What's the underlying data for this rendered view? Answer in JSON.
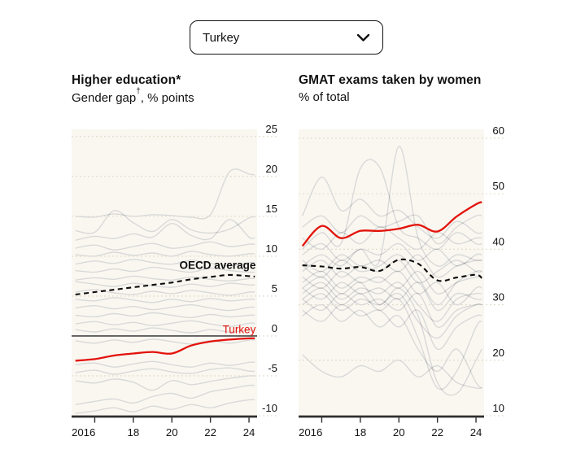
{
  "dropdown": {
    "value": "Turkey"
  },
  "colors": {
    "accent_red": "#e3120b",
    "reference_black": "#0d0d0d",
    "background_gray": "#d9d9d9",
    "plot_background": "#f9f7f0",
    "gridline": "#ddd7c3",
    "axis": "#2f2f2f",
    "zero_line": "#474747",
    "text": "#121212"
  },
  "chart_data": [
    {
      "type": "line",
      "title": "Higher education*",
      "subtitle": "Gender gap†, % points",
      "subtitle_parts": [
        {
          "t": "Gender gap"
        },
        {
          "t": "†",
          "sup": true
        },
        {
          "t": ", % points"
        }
      ],
      "x": [
        2015,
        2016,
        2017,
        2018,
        2019,
        2020,
        2021,
        2022,
        2023,
        2024,
        2024.3
      ],
      "xlim": [
        2014.8,
        2024.42
      ],
      "ylim": [
        -10,
        25.9
      ],
      "xticks": [
        {
          "v": 2016,
          "label": "2016",
          "align": "start"
        },
        {
          "v": 2018,
          "label": "18"
        },
        {
          "v": 2020,
          "label": "20"
        },
        {
          "v": 2022,
          "label": "22"
        },
        {
          "v": 2024,
          "label": "24"
        }
      ],
      "yticks": [
        25,
        20,
        15,
        10,
        5,
        0,
        -5,
        -10
      ],
      "zero_line": true,
      "grid": "dotted",
      "legend": "none",
      "series": [
        {
          "name": "OECD average",
          "role": "reference",
          "color": "#0d0d0d",
          "dash": true,
          "values": [
            5.2,
            5.5,
            5.8,
            6.1,
            6.4,
            6.7,
            7.1,
            7.4,
            7.65,
            7.5,
            7.45
          ]
        },
        {
          "name": "Turkey",
          "role": "highlight",
          "color": "#e3120b",
          "dash": false,
          "values": [
            -3.1,
            -2.9,
            -2.45,
            -2.2,
            -2.0,
            -2.2,
            -1.2,
            -0.7,
            -0.45,
            -0.3,
            -0.3
          ]
        }
      ],
      "background_series": [
        [
          15.0,
          14.9,
          15.3,
          15.0,
          15.2,
          15.1,
          14.9,
          15.2,
          20.6,
          20.3,
          20.2
        ],
        [
          13.2,
          13.0,
          15.7,
          14.2,
          13.1,
          14.6,
          13.3,
          12.9,
          13.4,
          14.8,
          14.9
        ],
        [
          12.0,
          12.5,
          12.2,
          12.8,
          12.4,
          14.1,
          12.6,
          12.2,
          14.6,
          12.4,
          12.3
        ],
        [
          11.0,
          11.4,
          10.8,
          11.2,
          11.6,
          11.0,
          11.3,
          11.8,
          11.2,
          11.5,
          11.5
        ],
        [
          10.2,
          10.0,
          10.5,
          10.1,
          10.4,
          10.0,
          10.6,
          10.2,
          10.0,
          10.3,
          10.3
        ],
        [
          9.0,
          9.4,
          9.1,
          9.6,
          9.2,
          9.0,
          9.5,
          9.1,
          8.8,
          9.2,
          9.2
        ],
        [
          8.2,
          8.0,
          8.4,
          8.1,
          8.6,
          8.3,
          8.0,
          8.5,
          8.2,
          8.0,
          8.0
        ],
        [
          7.0,
          7.3,
          7.1,
          7.5,
          7.2,
          7.0,
          7.4,
          7.1,
          6.9,
          7.2,
          7.2
        ],
        [
          6.8,
          6.5,
          6.2,
          6.6,
          6.3,
          6.1,
          6.5,
          6.2,
          6.6,
          6.4,
          6.4
        ],
        [
          5.5,
          5.8,
          5.4,
          5.2,
          5.6,
          5.3,
          5.7,
          5.4,
          5.1,
          5.5,
          5.5
        ],
        [
          4.6,
          4.4,
          4.8,
          4.5,
          4.2,
          4.6,
          4.3,
          4.7,
          4.4,
          4.6,
          4.6
        ],
        [
          3.5,
          3.8,
          3.4,
          3.7,
          3.3,
          3.6,
          3.9,
          3.5,
          3.2,
          3.6,
          3.6
        ],
        [
          2.6,
          2.4,
          2.8,
          2.5,
          2.9,
          2.6,
          2.3,
          2.7,
          2.4,
          2.6,
          2.6
        ],
        [
          1.5,
          1.8,
          1.4,
          1.7,
          1.3,
          1.6,
          1.9,
          1.5,
          1.2,
          1.6,
          1.6
        ],
        [
          0.8,
          0.5,
          0.9,
          0.6,
          1.0,
          0.7,
          0.4,
          0.8,
          0.5,
          0.7,
          0.7
        ],
        [
          -0.6,
          -0.9,
          -0.5,
          -0.8,
          -0.4,
          -0.7,
          -1.0,
          -0.6,
          -0.9,
          -0.5,
          -0.5
        ],
        [
          -3.6,
          -3.4,
          -3.9,
          -3.5,
          -3.2,
          -3.6,
          -3.9,
          -3.4,
          -3.7,
          -3.3,
          -3.3
        ],
        [
          -4.6,
          -4.3,
          -4.8,
          -4.4,
          -4.1,
          -4.5,
          -4.7,
          -4.2,
          -4.0,
          -4.4,
          -4.4
        ],
        [
          -5.6,
          -5.9,
          -5.4,
          -5.8,
          -6.8,
          -5.6,
          -6.1,
          -5.7,
          -5.3,
          -5.0,
          -5.0
        ],
        [
          -8.6,
          -8.2,
          -7.9,
          -8.4,
          -7.6,
          -7.2,
          -7.8,
          -7.0,
          -6.6,
          -6.2,
          -6.2
        ],
        [
          -9.7,
          -9.4,
          -9.0,
          -9.5,
          -8.8,
          -9.2,
          -8.6,
          -9.0,
          -8.4,
          -8.0,
          -8.0
        ]
      ],
      "annotations": [
        {
          "text": "OECD average",
          "x": 2024.35,
          "y": 8.4,
          "color": "#0d0d0d",
          "weight": "700",
          "anchor": "end"
        },
        {
          "text": "Turkey",
          "x": 2024.35,
          "y": 0.35,
          "color": "#e3120b",
          "weight": "400",
          "anchor": "end"
        }
      ]
    },
    {
      "type": "line",
      "title": "GMAT exams taken by women",
      "subtitle": "% of total",
      "subtitle_parts": [
        {
          "t": "% of total"
        }
      ],
      "x": [
        2015,
        2016,
        2017,
        2018,
        2019,
        2020,
        2021,
        2022,
        2023,
        2024,
        2024.3
      ],
      "xlim": [
        2014.8,
        2024.42
      ],
      "ylim": [
        10,
        61.6
      ],
      "xticks": [
        {
          "v": 2016,
          "label": "2016",
          "align": "start"
        },
        {
          "v": 2018,
          "label": "18"
        },
        {
          "v": 2020,
          "label": "20"
        },
        {
          "v": 2022,
          "label": "22"
        },
        {
          "v": 2024,
          "label": "24"
        }
      ],
      "yticks": [
        60,
        50,
        40,
        30,
        20,
        10
      ],
      "zero_line": false,
      "grid": "dotted",
      "legend": "none",
      "series": [
        {
          "name": "OECD average",
          "role": "reference",
          "color": "#0d0d0d",
          "dash": true,
          "values": [
            37.1,
            36.9,
            36.5,
            36.8,
            36.1,
            38.1,
            37.4,
            34.4,
            34.9,
            35.4,
            34.8
          ]
        },
        {
          "name": "Turkey",
          "role": "highlight",
          "color": "#e3120b",
          "dash": false,
          "values": [
            40.6,
            44.2,
            42.0,
            43.3,
            43.3,
            43.7,
            44.4,
            43.2,
            45.9,
            48.1,
            48.5
          ]
        }
      ],
      "background_series": [
        [
          37,
          39,
          37,
          40,
          38,
          58.5,
          42,
          37,
          39,
          38,
          38
        ],
        [
          40,
          43,
          41,
          54.5,
          54.8,
          44,
          42,
          40,
          43,
          41,
          41
        ],
        [
          46,
          53,
          47,
          49,
          46,
          47,
          44,
          42,
          45,
          43,
          43
        ],
        [
          44,
          46,
          43,
          46,
          44,
          45,
          46,
          41,
          44,
          46,
          46
        ],
        [
          42,
          40,
          43,
          41,
          44,
          42,
          40,
          43,
          41,
          42,
          42
        ],
        [
          39,
          41,
          38,
          40,
          39,
          41,
          38,
          40,
          37,
          39,
          39
        ],
        [
          38,
          36,
          39,
          37,
          38,
          36,
          39,
          35,
          37,
          38,
          38
        ],
        [
          36,
          38,
          35,
          37,
          36,
          38,
          34,
          36,
          38,
          36,
          36
        ],
        [
          35,
          33,
          36,
          34,
          35,
          33,
          36,
          32,
          34,
          35,
          35
        ],
        [
          34,
          36,
          33,
          35,
          34,
          36,
          32,
          34,
          30,
          33,
          33
        ],
        [
          33,
          31,
          34,
          32,
          33,
          31,
          34,
          29,
          32,
          31,
          31
        ],
        [
          32,
          34,
          31,
          33,
          32,
          34,
          30,
          27,
          31,
          32,
          32
        ],
        [
          31,
          29,
          32,
          30,
          31,
          29,
          32,
          26,
          29,
          30,
          30
        ],
        [
          30,
          32,
          29,
          31,
          30,
          32,
          27,
          24,
          28,
          30,
          30
        ],
        [
          29,
          27,
          30,
          28,
          29,
          26,
          29,
          22,
          26,
          28,
          28
        ],
        [
          33,
          35,
          32,
          34,
          30,
          33,
          28,
          16,
          14,
          20,
          22
        ],
        [
          31,
          33,
          30,
          32,
          29,
          31,
          24,
          15,
          18,
          26,
          27
        ],
        [
          21,
          18,
          17,
          19,
          18,
          20,
          17,
          19,
          16,
          15,
          15
        ],
        [
          28,
          30,
          27,
          29,
          26,
          28,
          22,
          18,
          22,
          16,
          15
        ],
        [
          37,
          35,
          38,
          36,
          37,
          39,
          35,
          30,
          34,
          36,
          36
        ]
      ],
      "annotations": []
    }
  ]
}
